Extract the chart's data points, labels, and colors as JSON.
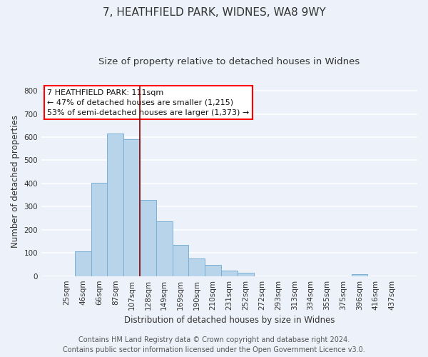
{
  "title": "7, HEATHFIELD PARK, WIDNES, WA8 9WY",
  "subtitle": "Size of property relative to detached houses in Widnes",
  "xlabel": "Distribution of detached houses by size in Widnes",
  "ylabel": "Number of detached properties",
  "bar_labels": [
    "25sqm",
    "46sqm",
    "66sqm",
    "87sqm",
    "107sqm",
    "128sqm",
    "149sqm",
    "169sqm",
    "190sqm",
    "210sqm",
    "231sqm",
    "252sqm",
    "272sqm",
    "293sqm",
    "313sqm",
    "334sqm",
    "355sqm",
    "375sqm",
    "396sqm",
    "416sqm",
    "437sqm"
  ],
  "bar_values": [
    0,
    106,
    403,
    614,
    590,
    330,
    237,
    136,
    76,
    49,
    25,
    15,
    0,
    0,
    0,
    0,
    0,
    0,
    8,
    0,
    0
  ],
  "bar_color": "#b8d4ea",
  "bar_edge_color": "#7aafd4",
  "annotation_line1": "7 HEATHFIELD PARK: 111sqm",
  "annotation_line2": "← 47% of detached houses are smaller (1,215)",
  "annotation_line3": "53% of semi-detached houses are larger (1,373) →",
  "vline_x": 4.5,
  "vline_color": "#8b0000",
  "ylim": [
    0,
    820
  ],
  "yticks": [
    0,
    100,
    200,
    300,
    400,
    500,
    600,
    700,
    800
  ],
  "footer_line1": "Contains HM Land Registry data © Crown copyright and database right 2024.",
  "footer_line2": "Contains public sector information licensed under the Open Government Licence v3.0.",
  "background_color": "#edf1f9",
  "grid_color": "#ffffff",
  "title_fontsize": 11,
  "subtitle_fontsize": 9.5,
  "axis_label_fontsize": 8.5,
  "tick_fontsize": 7.5,
  "annotation_fontsize": 8,
  "footer_fontsize": 7
}
